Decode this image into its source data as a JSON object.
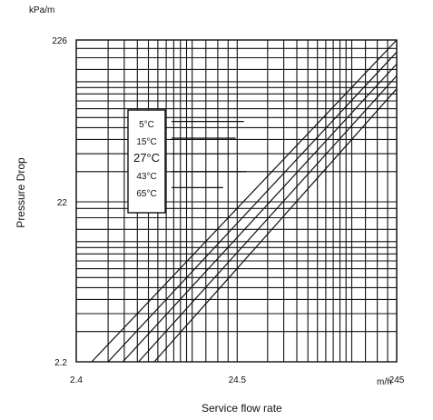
{
  "chart_data": {
    "type": "line",
    "xlabel": "Service flow rate",
    "ylabel": "Pressure Drop",
    "y_unit": "kPa/m",
    "x_unit": "m/h",
    "x_scale": "log",
    "y_scale": "log",
    "xlim": [
      2.4,
      245
    ],
    "ylim": [
      2.2,
      226
    ],
    "x_ticks": [
      {
        "value": 2.4,
        "label": "2.4"
      },
      {
        "value": 24.5,
        "label": "24.5"
      },
      {
        "value": 245,
        "label": "245"
      }
    ],
    "y_ticks": [
      {
        "value": 2.2,
        "label": "2.2"
      },
      {
        "value": 22,
        "label": "22"
      },
      {
        "value": 226,
        "label": "226"
      }
    ],
    "grid": true,
    "legend_placement": "upper-left",
    "series": [
      {
        "name": "5°C",
        "x": [
          3.0,
          245
        ],
        "y": [
          2.2,
          226
        ]
      },
      {
        "name": "15°C",
        "x": [
          3.8,
          245
        ],
        "y": [
          2.2,
          190
        ]
      },
      {
        "name": "27°C",
        "x": [
          4.7,
          245
        ],
        "y": [
          2.2,
          160
        ]
      },
      {
        "name": "43°C",
        "x": [
          5.9,
          245
        ],
        "y": [
          2.2,
          135
        ]
      },
      {
        "name": "65°C",
        "x": [
          7.4,
          245
        ],
        "y": [
          2.2,
          112
        ]
      }
    ],
    "grid_x": [
      2.4,
      3.8,
      4.8,
      5.8,
      6.8,
      7.8,
      8.8,
      9.8,
      10.8,
      11.8,
      12.8,
      15.6,
      18.5,
      21.5,
      24.5,
      38,
      48,
      58,
      68,
      78,
      88,
      98,
      108,
      118,
      128,
      156,
      185,
      215,
      245
    ],
    "grid_y": [
      2.2,
      3.4,
      4.4,
      5.4,
      6.4,
      7.4,
      8.4,
      9.4,
      10.4,
      11.4,
      12.4,
      14.8,
      17.5,
      20,
      22,
      34,
      44,
      54,
      64,
      74,
      84,
      94,
      104,
      114,
      124,
      148,
      175,
      200,
      226
    ],
    "legend_links": [
      {
        "x0": 9.5,
        "x1": 27,
        "y": 70
      },
      {
        "x0": 9.5,
        "x1": 24,
        "y": 55
      },
      {
        "x0": 9.5,
        "x1": 22,
        "y": 44
      },
      {
        "x0": 9.5,
        "x1": 28,
        "y": 34
      },
      {
        "x0": 9.5,
        "x1": 20,
        "y": 27
      }
    ]
  }
}
